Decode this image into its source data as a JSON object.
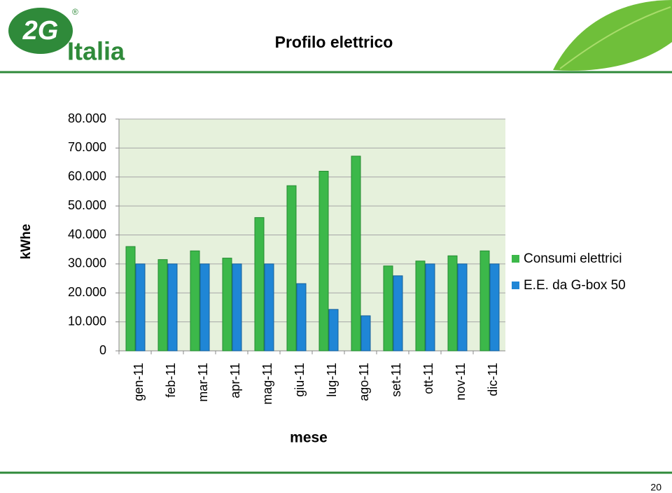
{
  "logo": {
    "mark": "2G",
    "name": "Italia"
  },
  "page_number": "20",
  "chart_data": {
    "type": "bar",
    "title": "Profilo elettrico",
    "x_label": "mese",
    "y_label": "kWhe",
    "categories": [
      "gen-11",
      "feb-11",
      "mar-11",
      "apr-11",
      "mag-11",
      "giu-11",
      "lug-11",
      "ago-11",
      "set-11",
      "ott-11",
      "nov-11",
      "dic-11"
    ],
    "series": [
      {
        "name": "Consumi elettrici",
        "color": "#3cb84a",
        "values": [
          36000,
          31500,
          34500,
          32000,
          46000,
          57000,
          62000,
          67200,
          29300,
          31000,
          32800,
          34500
        ]
      },
      {
        "name": "E.E. da G-box 50",
        "color": "#1f86d6",
        "values": [
          30000,
          30000,
          30000,
          30000,
          30000,
          23200,
          14300,
          12100,
          25900,
          30000,
          30000,
          30000
        ]
      }
    ],
    "ylim": [
      0,
      80000
    ],
    "yticks": [
      0,
      {
        "value": 10000,
        "label": "10.000"
      },
      {
        "value": 20000,
        "label": "20.000"
      },
      {
        "value": 30000,
        "label": "30.000"
      },
      {
        "value": 40000,
        "label": "40.000"
      },
      {
        "value": 50000,
        "label": "50.000"
      },
      {
        "value": 60000,
        "label": "60.000"
      },
      {
        "value": 70000,
        "label": "70.000"
      },
      {
        "value": 80000,
        "label": "80.000"
      }
    ],
    "grid": true,
    "legend": "right"
  }
}
